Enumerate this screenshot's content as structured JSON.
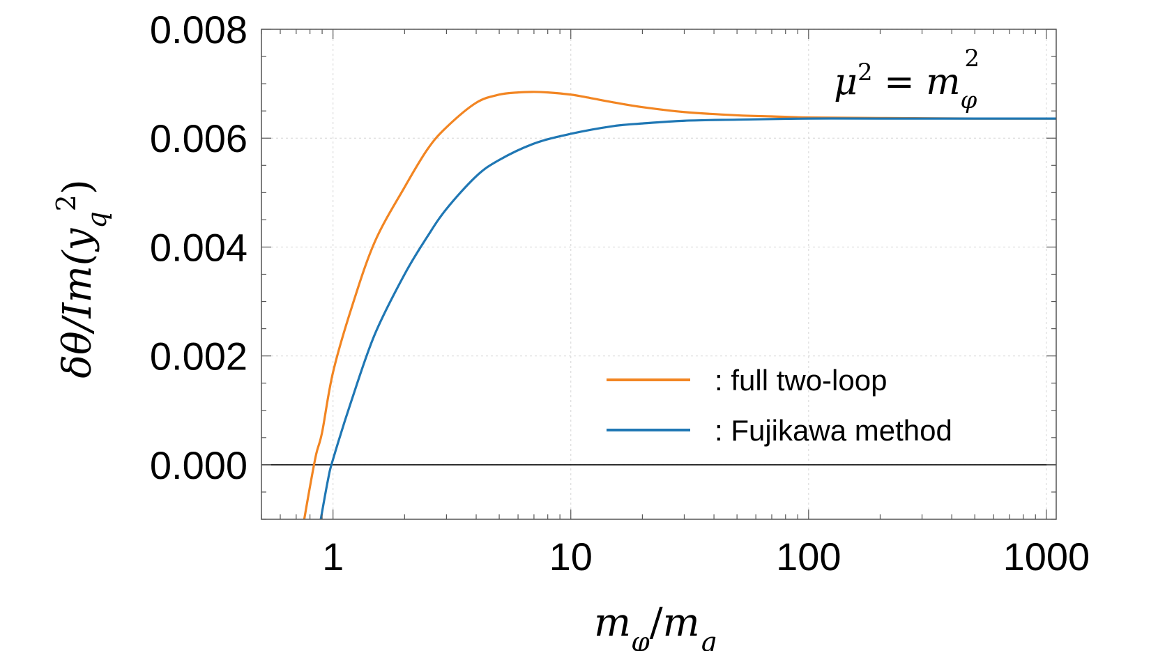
{
  "chart_data": {
    "type": "line",
    "xscale": "log",
    "xlim": [
      0.5,
      1100
    ],
    "ylim": [
      -0.001,
      0.008
    ],
    "xticks": [
      {
        "value": 1,
        "label": "1"
      },
      {
        "value": 10,
        "label": "10"
      },
      {
        "value": 100,
        "label": "100"
      },
      {
        "value": 1000,
        "label": "1000"
      }
    ],
    "yticks": [
      {
        "value": 0.0,
        "label": "0.000"
      },
      {
        "value": 0.002,
        "label": "0.002"
      },
      {
        "value": 0.004,
        "label": "0.004"
      },
      {
        "value": 0.006,
        "label": "0.006"
      },
      {
        "value": 0.008,
        "label": "0.008"
      }
    ],
    "xlabel": {
      "m1": "m",
      "s1": "φ",
      "slash": "/",
      "m2": "m",
      "s2": "q"
    },
    "ylabel": {
      "prefix": "δθ/Im(y",
      "sub": "q",
      "sup": "2",
      "suffix": ")"
    },
    "annotation": {
      "mu": "μ",
      "mu_sup": "2",
      "eq": " = ",
      "m": "m",
      "m_sub": "φ",
      "m_sup": "2"
    },
    "grid": true,
    "legend_position": "right",
    "series": [
      {
        "name": ": full two-loop",
        "color": "#f28522",
        "x": [
          0.75,
          0.8,
          0.85,
          0.9,
          1.0,
          1.2,
          1.5,
          2.0,
          2.5,
          3.0,
          4.0,
          5.0,
          6.0,
          7.0,
          8.0,
          10,
          12,
          15,
          20,
          30,
          50,
          70,
          100,
          200,
          500,
          1000,
          1100
        ],
        "y": [
          -0.0011,
          -0.0004,
          0.0002,
          0.0006,
          0.0017,
          0.0029,
          0.0041,
          0.0051,
          0.0058,
          0.0062,
          0.00665,
          0.0068,
          0.00684,
          0.00685,
          0.00684,
          0.0068,
          0.00674,
          0.00666,
          0.00657,
          0.00648,
          0.00642,
          0.0064,
          0.00638,
          0.00637,
          0.00636,
          0.00636,
          0.00636
        ]
      },
      {
        "name": ": Fujikawa method",
        "color": "#1f77b4",
        "x": [
          0.88,
          0.95,
          1.0,
          1.2,
          1.5,
          2.0,
          2.5,
          3.0,
          4.0,
          5.0,
          7.0,
          10,
          15,
          20,
          30,
          50,
          100,
          200,
          500,
          1000,
          1100
        ],
        "y": [
          -0.0011,
          -0.0003,
          0.0001,
          0.0012,
          0.0024,
          0.0035,
          0.0042,
          0.0047,
          0.0053,
          0.0056,
          0.0059,
          0.00608,
          0.00622,
          0.00627,
          0.00632,
          0.00634,
          0.00636,
          0.00636,
          0.00636,
          0.00636,
          0.00636
        ]
      }
    ]
  }
}
